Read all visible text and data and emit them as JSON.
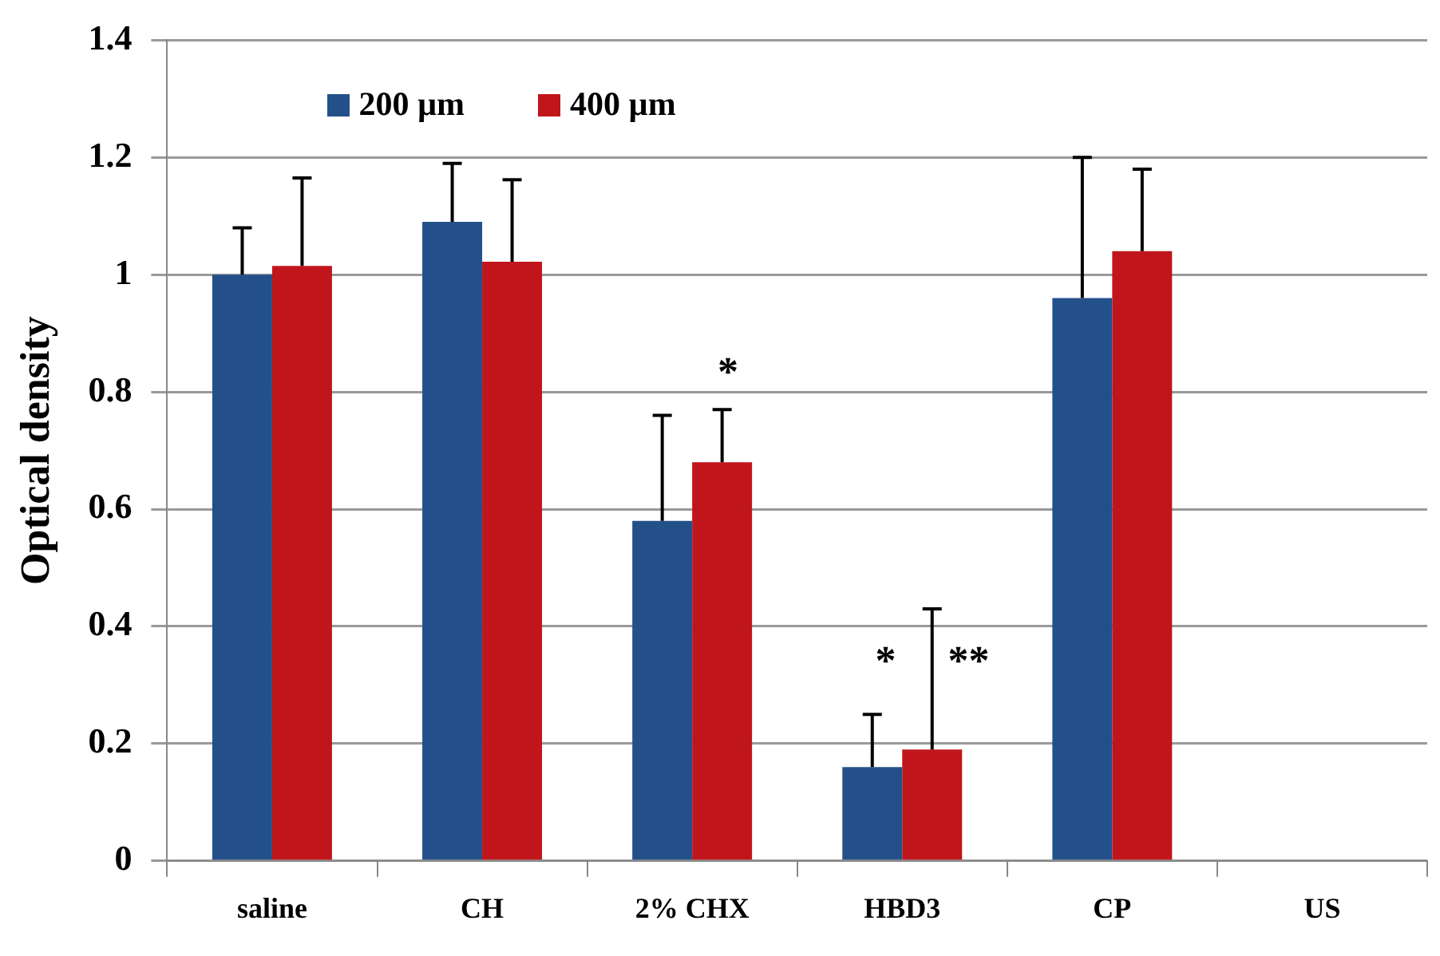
{
  "chart_data": {
    "type": "bar",
    "ylabel": "Optical density",
    "categories": [
      "saline",
      "CH",
      "2% CHX",
      "HBD3",
      "CP",
      "US"
    ],
    "series": [
      {
        "name": "200 µm",
        "color": "#24508a",
        "values": [
          1.0,
          1.09,
          0.58,
          0.16,
          0.96,
          null
        ],
        "errors": [
          0.08,
          0.1,
          0.18,
          0.09,
          0.24,
          null
        ]
      },
      {
        "name": "400 µm",
        "color": "#c0161b",
        "values": [
          1.015,
          1.022,
          0.68,
          0.19,
          1.04,
          null
        ],
        "errors": [
          0.15,
          0.14,
          0.09,
          0.24,
          0.14,
          null
        ]
      }
    ],
    "ylim": [
      0,
      1.4
    ],
    "yticks": [
      0,
      0.2,
      0.4,
      0.6,
      0.8,
      1,
      1.2,
      1.4
    ],
    "grid": "y",
    "legend": "top left",
    "annotations": [
      "*",
      "*     **"
    ]
  }
}
